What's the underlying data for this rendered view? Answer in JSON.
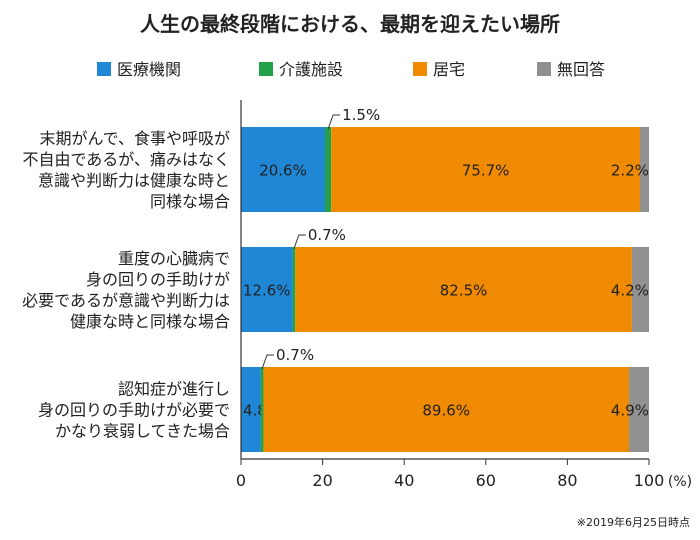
{
  "chart_data": {
    "type": "bar",
    "orientation": "horizontal",
    "stacked": true,
    "title": "人生の最終段階における、最期を迎えたい場所",
    "categories": [
      [
        "末期がんで、食事や呼吸が",
        "不自由であるが、痛みはなく",
        "意識や判断力は健康な時と",
        "同様な場合"
      ],
      [
        "重度の心臓病で",
        "身の回りの手助けが",
        "必要であるが意識や判断力は",
        "健康な時と同様な場合"
      ],
      [
        "認知症が進行し",
        "身の回りの手助けが必要で",
        "かなり衰弱してきた場合"
      ]
    ],
    "series": [
      {
        "name": "医療機関",
        "color": "#1f87d6",
        "values": [
          20.6,
          12.6,
          4.8
        ],
        "labels": [
          "20.6%",
          "12.6%",
          "4.8%"
        ]
      },
      {
        "name": "介護施設",
        "color": "#22a04a",
        "values": [
          1.5,
          0.7,
          0.7
        ],
        "labels": [
          "1.5%",
          "0.7%",
          "0.7%"
        ]
      },
      {
        "name": "居宅",
        "color": "#f08a00",
        "values": [
          75.7,
          82.5,
          89.6
        ],
        "labels": [
          "75.7%",
          "82.5%",
          "89.6%"
        ]
      },
      {
        "name": "無回答",
        "color": "#919191",
        "values": [
          2.2,
          4.2,
          4.9
        ],
        "labels": [
          "2.2%",
          "4.2%",
          "4.9%"
        ]
      }
    ],
    "xlim": [
      0,
      100
    ],
    "xticks": [
      "0",
      "20",
      "40",
      "60",
      "80",
      "100"
    ],
    "xunit": "(%)",
    "note": "※2019年6月25日時点"
  }
}
